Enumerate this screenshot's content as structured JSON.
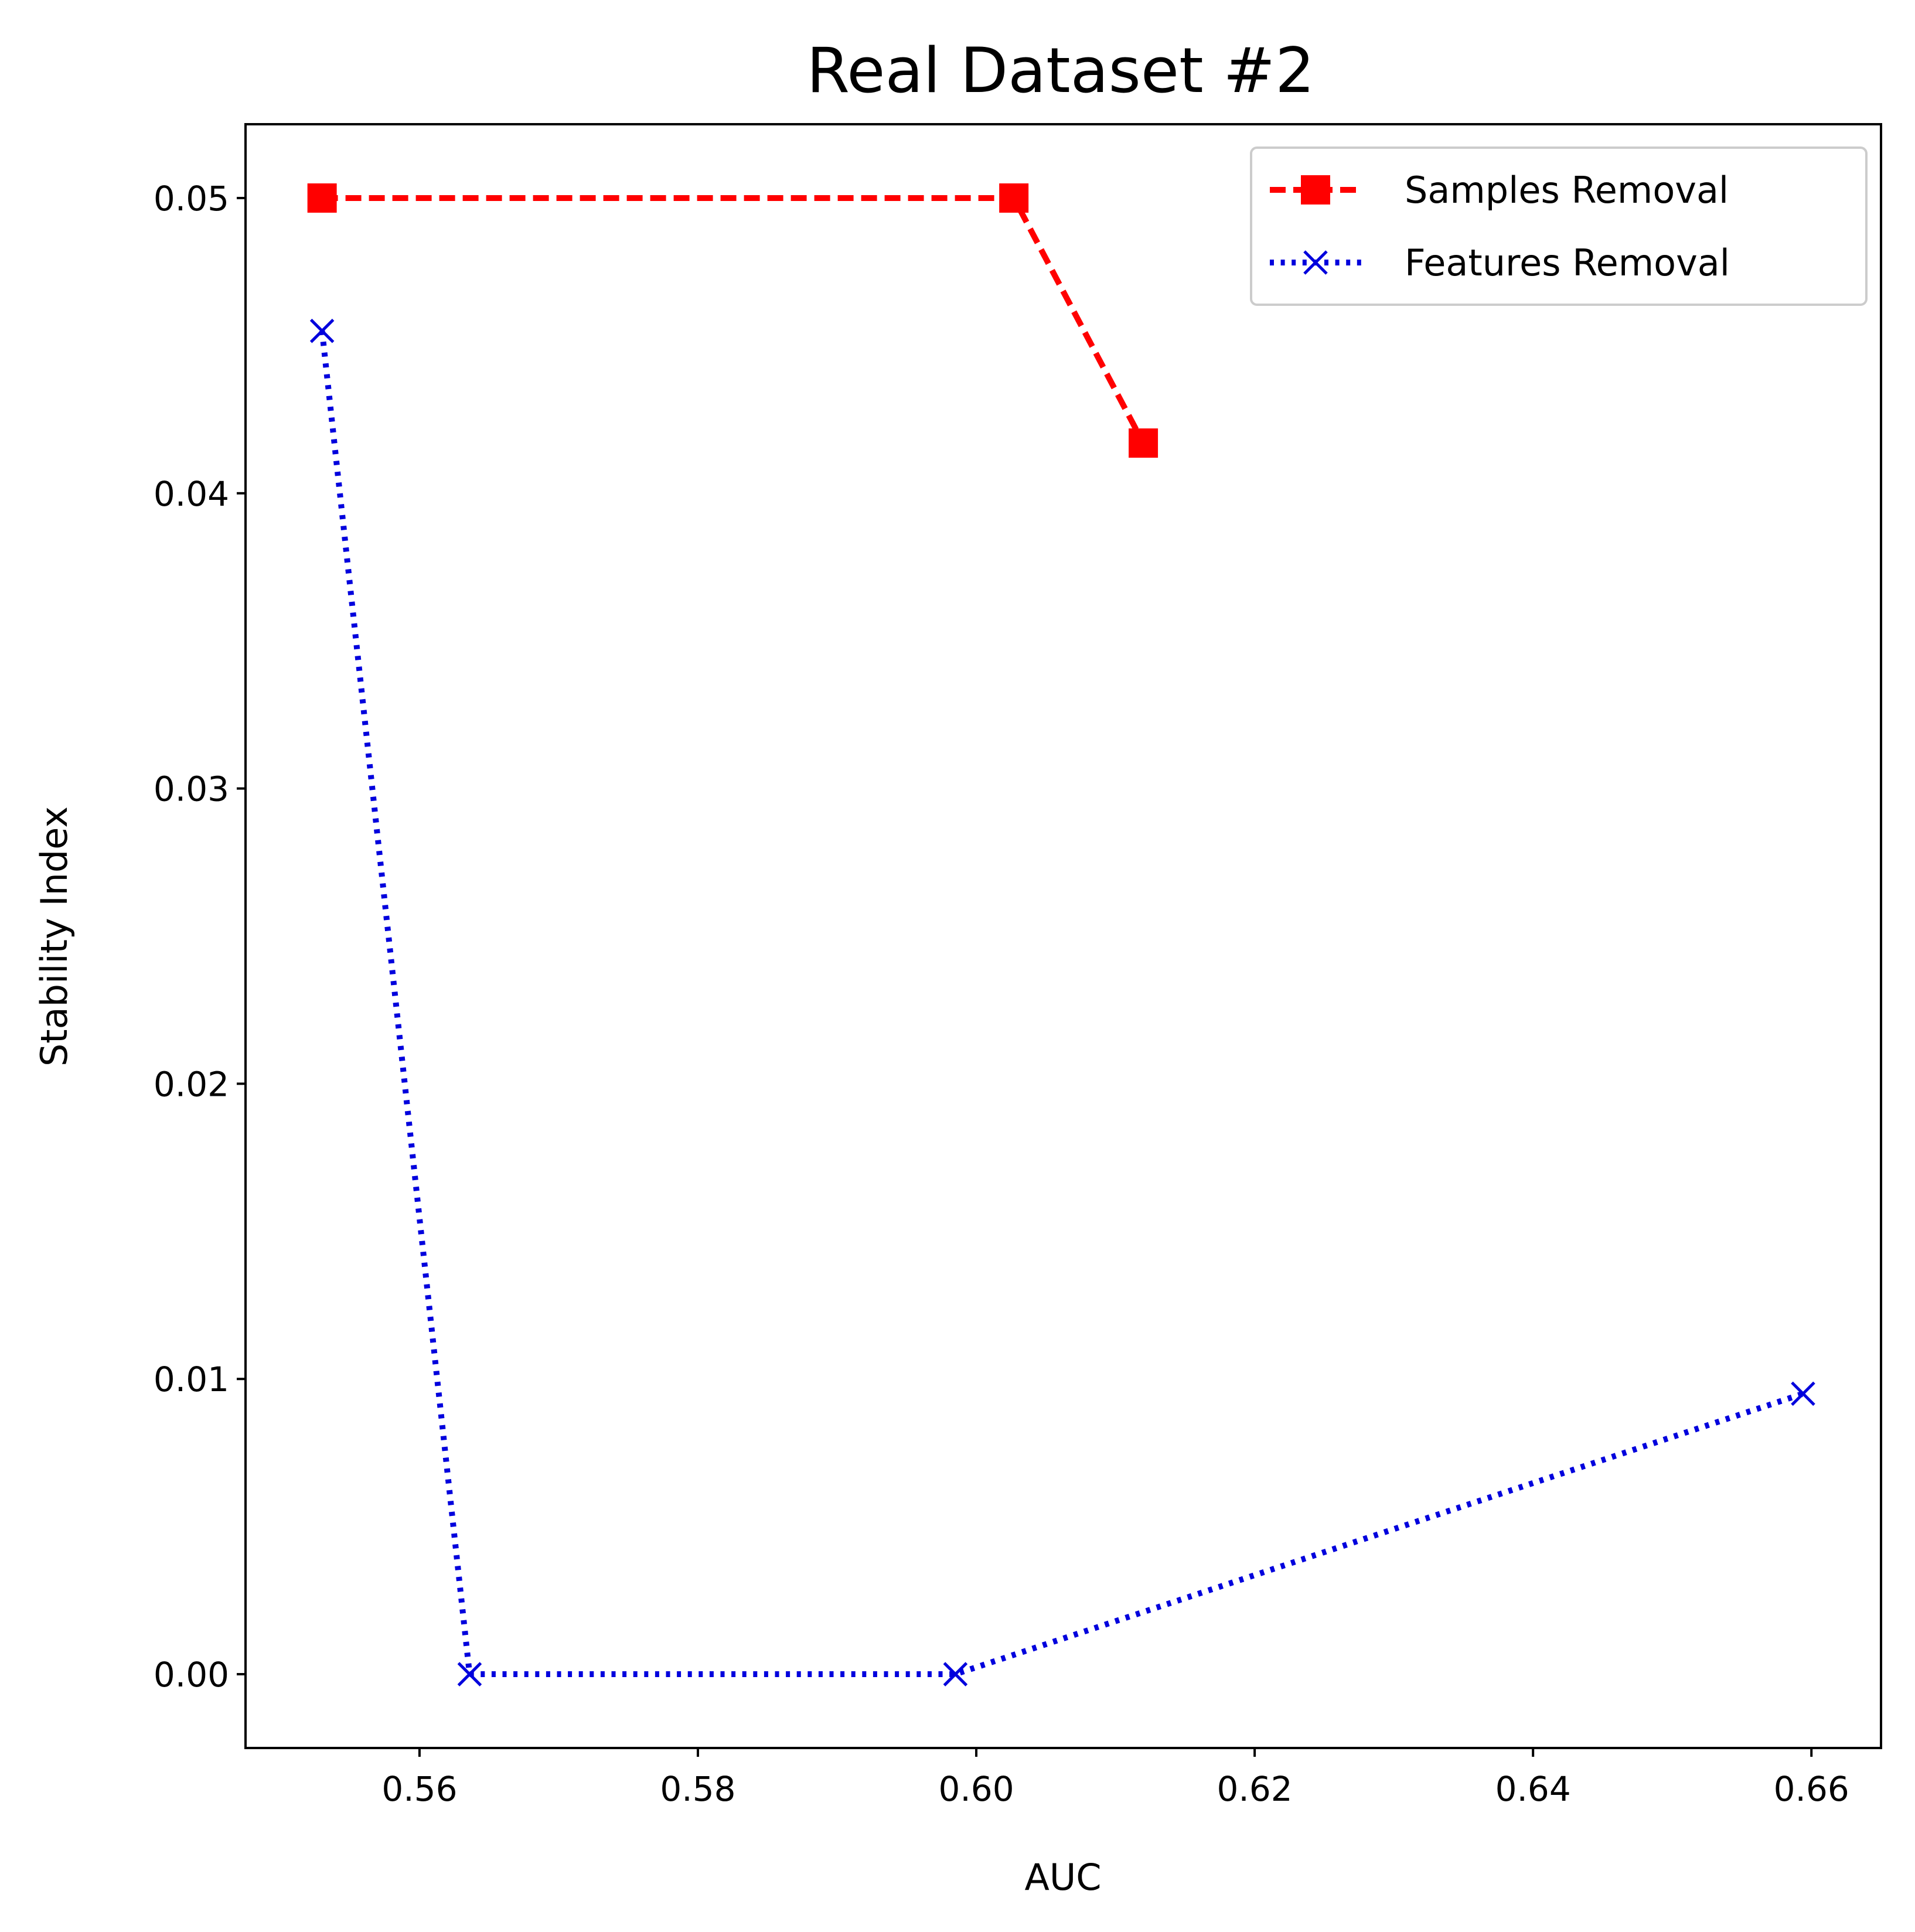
{
  "chart_data": {
    "type": "line",
    "title": "Real Dataset #2",
    "xlabel": "AUC",
    "ylabel": "Stability Index",
    "xlim": [
      0.5475,
      0.665
    ],
    "ylim": [
      -0.0025,
      0.0525
    ],
    "xticks": [
      0.56,
      0.58,
      0.6,
      0.62,
      0.64,
      0.66
    ],
    "xtick_labels": [
      "0.56",
      "0.58",
      "0.60",
      "0.62",
      "0.64",
      "0.66"
    ],
    "yticks": [
      0.0,
      0.01,
      0.02,
      0.03,
      0.04,
      0.05
    ],
    "ytick_labels": [
      "0.00",
      "0.01",
      "0.02",
      "0.03",
      "0.04",
      "0.05"
    ],
    "grid": false,
    "legend_position": "top-right",
    "series": [
      {
        "name": "Samples Removal",
        "color": "#ff0000",
        "line_style": "dashed",
        "marker": "square",
        "x": [
          0.553,
          0.6027,
          0.612
        ],
        "y": [
          0.05,
          0.05,
          0.0417
        ]
      },
      {
        "name": "Features Removal",
        "color": "#0000dd",
        "line_style": "dotted",
        "marker": "x",
        "x": [
          0.553,
          0.5636,
          0.5985,
          0.6594
        ],
        "y": [
          0.0455,
          0.0,
          0.0,
          0.0095
        ]
      }
    ]
  }
}
